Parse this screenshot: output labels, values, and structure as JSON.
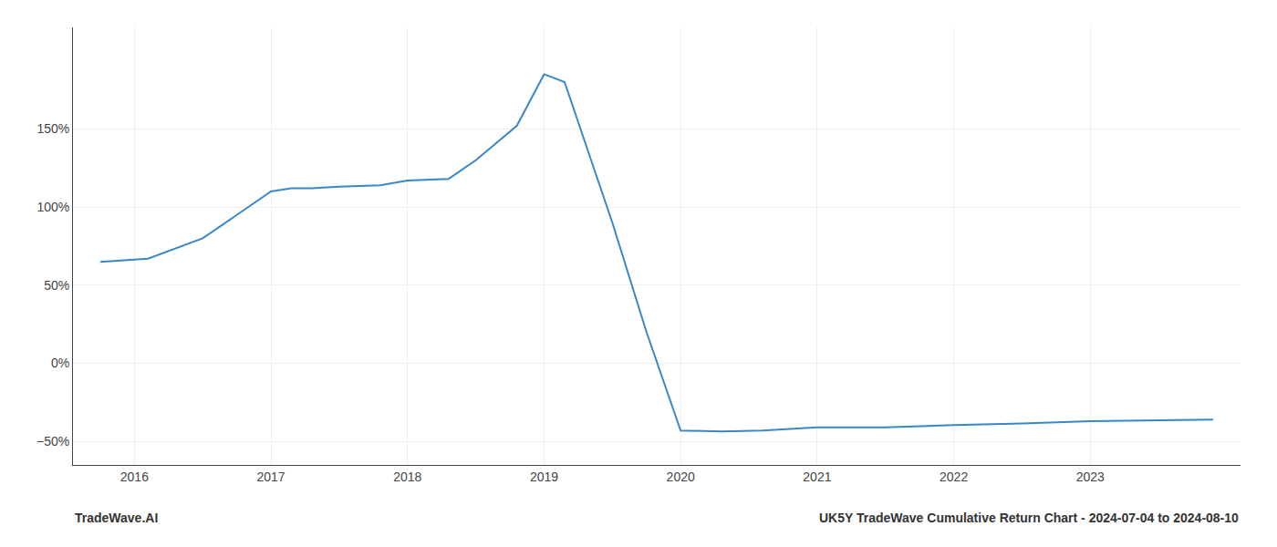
{
  "chart_data": {
    "type": "line",
    "x": [
      2015.75,
      2016.1,
      2016.5,
      2017.0,
      2017.15,
      2017.3,
      2017.5,
      2017.8,
      2018.0,
      2018.3,
      2018.5,
      2018.8,
      2019.0,
      2019.15,
      2019.5,
      2019.75,
      2020.0,
      2020.3,
      2020.6,
      2021.0,
      2021.3,
      2021.5,
      2022.0,
      2022.5,
      2023.0,
      2023.5,
      2023.9
    ],
    "values": [
      65,
      67,
      80,
      110,
      112,
      112,
      113,
      114,
      117,
      118,
      130,
      152,
      185,
      180,
      90,
      20,
      -43,
      -43.5,
      -43,
      -41,
      -41,
      -41,
      -39.5,
      -38.5,
      -37,
      -36.5,
      -36
    ],
    "color": "#3a87c8",
    "xlim": [
      2015.55,
      2024.1
    ],
    "xticks": [
      2016,
      2017,
      2018,
      2019,
      2020,
      2021,
      2022,
      2023
    ],
    "ylim": [
      -65,
      215
    ],
    "yticks": [
      {
        "value": -50,
        "label": "−50%"
      },
      {
        "value": 0,
        "label": "0%"
      },
      {
        "value": 50,
        "label": "50%"
      },
      {
        "value": 100,
        "label": "100%"
      },
      {
        "value": 150,
        "label": "150%"
      }
    ],
    "grid": true,
    "annotations": [
      "TradeWave.AI",
      "UK5Y TradeWave Cumulative Return Chart - 2024-07-04 to 2024-08-10"
    ]
  }
}
